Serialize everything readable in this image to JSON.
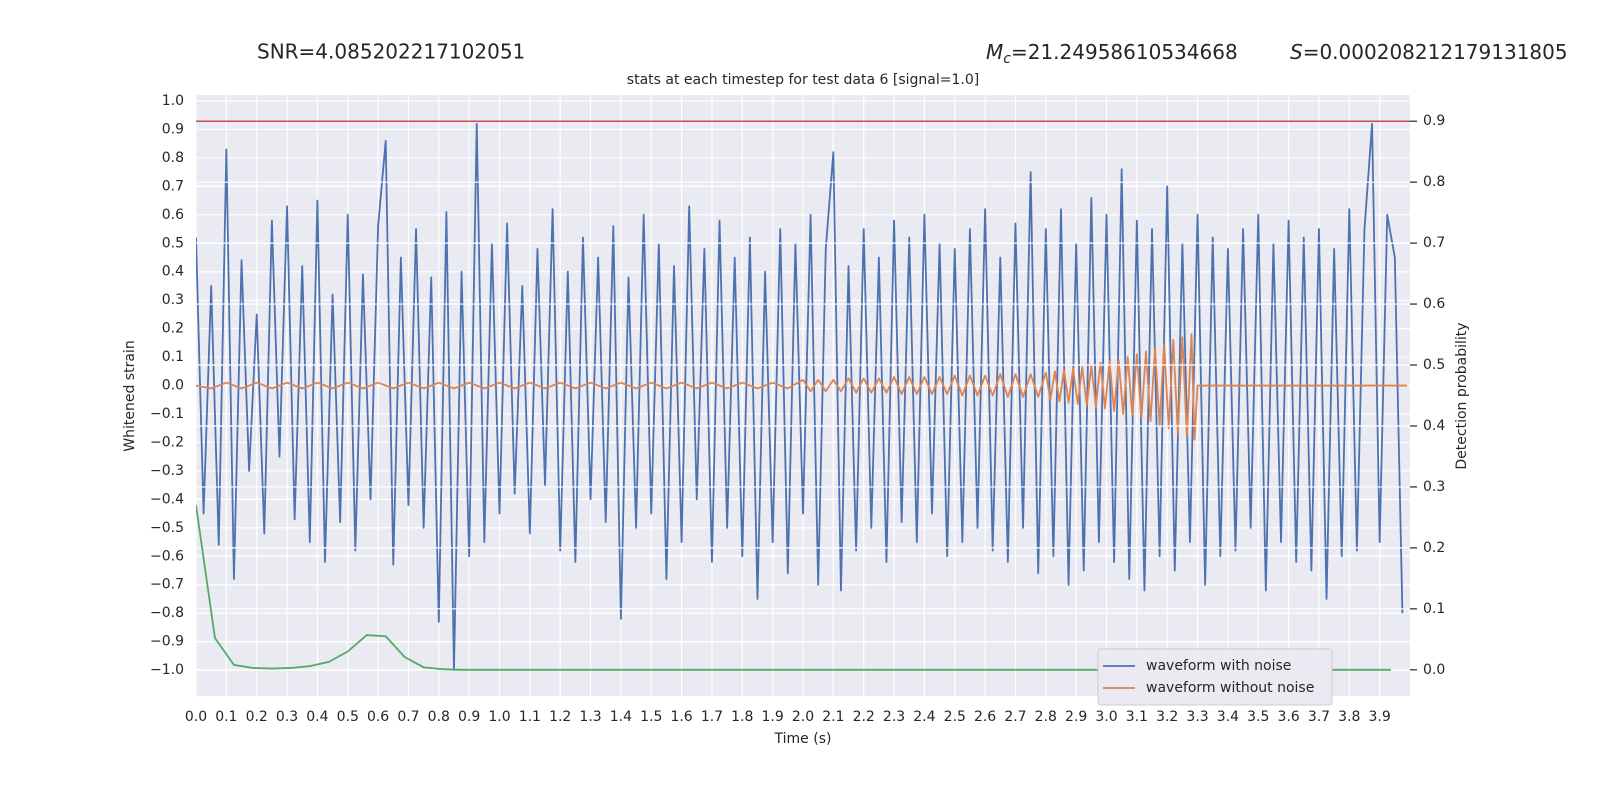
{
  "header": {
    "snr": "SNR=4.085202217102051",
    "mc": {
      "symbol": "M",
      "subscript": "c",
      "text": "=21.24958610534668"
    },
    "s": {
      "symbol": "S",
      "text": "=0.000208212179131805"
    }
  },
  "chart_data": {
    "type": "line",
    "title": "stats at each timestep for test data 6 [signal=1.0]",
    "x_label": "Time (s)",
    "y_label": "Whitened strain",
    "y2_label": "Detection probability",
    "xlim": [
      0,
      4.0
    ],
    "ylim": [
      -1.091,
      1.021
    ],
    "y2lim": [
      -0.043,
      0.943
    ],
    "grid": true,
    "legend": "lower right",
    "xticks": [
      {
        "value": 0,
        "label": "0.0"
      },
      0.1,
      0.2,
      0.3,
      0.4,
      0.5,
      0.6,
      0.7,
      0.8,
      0.9,
      {
        "value": 1,
        "label": "1.0"
      },
      1.1,
      1.2,
      1.3,
      1.4,
      1.5,
      1.6,
      1.7,
      1.8,
      1.9,
      {
        "value": 2,
        "label": "2.0"
      },
      2.1,
      2.2,
      2.3,
      2.4,
      2.5,
      2.6,
      2.7,
      2.8,
      2.9,
      {
        "value": 3,
        "label": "3.0"
      },
      3.1,
      3.2,
      3.3,
      3.4,
      3.5,
      3.6,
      3.7,
      3.8,
      3.9
    ],
    "yticks": [
      {
        "value": -1,
        "label": "−1.0"
      },
      {
        "value": -0.9,
        "label": "−0.9"
      },
      {
        "value": -0.8,
        "label": "−0.8"
      },
      {
        "value": -0.7,
        "label": "−0.7"
      },
      {
        "value": -0.6,
        "label": "−0.6"
      },
      {
        "value": -0.5,
        "label": "−0.5"
      },
      {
        "value": -0.4,
        "label": "−0.4"
      },
      {
        "value": -0.3,
        "label": "−0.3"
      },
      {
        "value": -0.2,
        "label": "−0.2"
      },
      {
        "value": -0.1,
        "label": "−0.1"
      },
      {
        "value": 0,
        "label": "0.0"
      },
      0.1,
      0.2,
      0.3,
      0.4,
      0.5,
      0.6,
      0.7,
      0.8,
      0.9,
      {
        "value": 1,
        "label": "1.0"
      }
    ],
    "y2ticks": [
      {
        "value": 0,
        "label": "0.0"
      },
      0.1,
      0.2,
      0.3,
      0.4,
      0.5,
      0.6,
      0.7,
      0.8,
      0.9
    ],
    "hline": {
      "axis": "y2",
      "value": 0.9,
      "color": "#c44e52"
    },
    "series": [
      {
        "name": "waveform with noise",
        "color": "#4c72b0",
        "x": [
          0,
          0.025,
          0.05,
          0.075,
          0.1,
          0.125,
          0.15,
          0.175,
          0.2,
          0.225,
          0.25,
          0.275,
          0.3,
          0.325,
          0.35,
          0.375,
          0.4,
          0.425,
          0.45,
          0.475,
          0.5,
          0.525,
          0.55,
          0.575,
          0.6,
          0.625,
          0.65,
          0.675,
          0.7,
          0.725,
          0.75,
          0.775,
          0.8,
          0.825,
          0.85,
          0.875,
          0.9,
          0.925,
          0.95,
          0.975,
          1,
          1.025,
          1.05,
          1.075,
          1.1,
          1.125,
          1.15,
          1.175,
          1.2,
          1.225,
          1.25,
          1.275,
          1.3,
          1.325,
          1.35,
          1.375,
          1.4,
          1.425,
          1.45,
          1.475,
          1.5,
          1.525,
          1.55,
          1.575,
          1.6,
          1.625,
          1.65,
          1.675,
          1.7,
          1.725,
          1.75,
          1.775,
          1.8,
          1.825,
          1.85,
          1.875,
          1.9,
          1.925,
          1.95,
          1.975,
          2,
          2.025,
          2.05,
          2.075,
          2.1,
          2.125,
          2.15,
          2.175,
          2.2,
          2.225,
          2.25,
          2.275,
          2.3,
          2.325,
          2.35,
          2.375,
          2.4,
          2.425,
          2.45,
          2.475,
          2.5,
          2.525,
          2.55,
          2.575,
          2.6,
          2.625,
          2.65,
          2.675,
          2.7,
          2.725,
          2.75,
          2.775,
          2.8,
          2.825,
          2.85,
          2.875,
          2.9,
          2.925,
          2.95,
          2.975,
          3,
          3.025,
          3.05,
          3.075,
          3.1,
          3.125,
          3.15,
          3.175,
          3.2,
          3.225,
          3.25,
          3.275,
          3.3,
          3.325,
          3.35,
          3.375,
          3.4,
          3.425,
          3.45,
          3.475,
          3.5,
          3.525,
          3.55,
          3.575,
          3.6,
          3.625,
          3.65,
          3.675,
          3.7,
          3.725,
          3.75,
          3.775,
          3.8,
          3.825,
          3.85,
          3.875,
          3.9,
          3.925,
          3.95,
          3.975
        ],
        "values": [
          0.52,
          -0.45,
          0.35,
          -0.56,
          0.83,
          -0.68,
          0.44,
          -0.3,
          0.25,
          -0.52,
          0.58,
          -0.25,
          0.63,
          -0.47,
          0.42,
          -0.55,
          0.65,
          -0.62,
          0.32,
          -0.48,
          0.6,
          -0.58,
          0.39,
          -0.4,
          0.56,
          0.86,
          -0.63,
          0.45,
          -0.42,
          0.55,
          -0.5,
          0.38,
          -0.83,
          0.61,
          -1.0,
          0.4,
          -0.6,
          0.92,
          -0.55,
          0.5,
          -0.45,
          0.57,
          -0.38,
          0.35,
          -0.52,
          0.48,
          -0.35,
          0.62,
          -0.58,
          0.4,
          -0.62,
          0.52,
          -0.4,
          0.45,
          -0.48,
          0.56,
          -0.82,
          0.38,
          -0.5,
          0.6,
          -0.45,
          0.5,
          -0.68,
          0.42,
          -0.55,
          0.63,
          -0.4,
          0.48,
          -0.62,
          0.58,
          -0.5,
          0.45,
          -0.6,
          0.52,
          -0.75,
          0.4,
          -0.55,
          0.55,
          -0.66,
          0.5,
          -0.45,
          0.6,
          -0.7,
          0.48,
          0.82,
          -0.72,
          0.42,
          -0.58,
          0.55,
          -0.5,
          0.45,
          -0.62,
          0.58,
          -0.48,
          0.52,
          -0.55,
          0.6,
          -0.45,
          0.5,
          -0.6,
          0.48,
          -0.55,
          0.55,
          -0.5,
          0.62,
          -0.58,
          0.45,
          -0.62,
          0.57,
          -0.5,
          0.75,
          -0.66,
          0.55,
          -0.6,
          0.62,
          -0.7,
          0.5,
          -0.65,
          0.66,
          -0.55,
          0.6,
          -0.62,
          0.76,
          -0.68,
          0.58,
          -0.72,
          0.55,
          -0.6,
          0.7,
          -0.65,
          0.5,
          -0.55,
          0.6,
          -0.7,
          0.52,
          -0.6,
          0.48,
          -0.58,
          0.55,
          -0.5,
          0.6,
          -0.72,
          0.5,
          -0.55,
          0.58,
          -0.62,
          0.52,
          -0.65,
          0.55,
          -0.75,
          0.48,
          -0.6,
          0.62,
          -0.58,
          0.55,
          0.92,
          -0.55,
          0.6,
          0.45,
          -0.8
        ]
      },
      {
        "name": "waveform without noise",
        "color": "#dd8452",
        "x": [
          0,
          0.05,
          0.1,
          0.15,
          0.2,
          0.25,
          0.3,
          0.35,
          0.4,
          0.45,
          0.5,
          0.55,
          0.6,
          0.65,
          0.7,
          0.75,
          0.8,
          0.85,
          0.9,
          0.95,
          1,
          1.05,
          1.1,
          1.15,
          1.2,
          1.25,
          1.3,
          1.35,
          1.4,
          1.45,
          1.5,
          1.55,
          1.6,
          1.65,
          1.7,
          1.75,
          1.8,
          1.85,
          1.9,
          1.95,
          2,
          2.025,
          2.05,
          2.075,
          2.1,
          2.125,
          2.15,
          2.175,
          2.2,
          2.225,
          2.25,
          2.275,
          2.3,
          2.325,
          2.35,
          2.375,
          2.4,
          2.425,
          2.45,
          2.475,
          2.5,
          2.525,
          2.55,
          2.575,
          2.6,
          2.625,
          2.65,
          2.675,
          2.7,
          2.725,
          2.75,
          2.775,
          2.8,
          2.815,
          2.83,
          2.845,
          2.86,
          2.875,
          2.89,
          2.905,
          2.92,
          2.935,
          2.95,
          2.965,
          2.98,
          2.995,
          3.01,
          3.025,
          3.04,
          3.055,
          3.07,
          3.085,
          3.1,
          3.115,
          3.13,
          3.145,
          3.16,
          3.175,
          3.19,
          3.205,
          3.22,
          3.235,
          3.25,
          3.265,
          3.28,
          3.29,
          3.3,
          3.99
        ],
        "values": [
          0,
          -0.01,
          0.01,
          -0.01,
          0.01,
          -0.01,
          0.01,
          -0.01,
          0.01,
          -0.01,
          0.01,
          -0.01,
          0.01,
          -0.01,
          0.01,
          -0.01,
          0.01,
          -0.01,
          0.01,
          -0.01,
          0.01,
          -0.01,
          0.01,
          -0.01,
          0.01,
          -0.01,
          0.01,
          -0.01,
          0.01,
          -0.01,
          0.01,
          -0.01,
          0.01,
          -0.01,
          0.01,
          -0.01,
          0.01,
          -0.01,
          0.01,
          -0.01,
          0.02,
          -0.02,
          0.02,
          -0.02,
          0.02,
          -0.02,
          0.025,
          -0.025,
          0.025,
          -0.025,
          0.025,
          -0.025,
          0.03,
          -0.03,
          0.03,
          -0.03,
          0.03,
          -0.03,
          0.03,
          -0.03,
          0.035,
          -0.035,
          0.035,
          -0.035,
          0.035,
          -0.035,
          0.04,
          -0.04,
          0.04,
          -0.04,
          0.04,
          -0.04,
          0.045,
          -0.05,
          0.05,
          -0.055,
          0.055,
          -0.06,
          0.06,
          -0.065,
          0.065,
          -0.07,
          0.07,
          -0.075,
          0.08,
          -0.08,
          0.085,
          -0.09,
          0.09,
          -0.1,
          0.1,
          -0.105,
          0.11,
          -0.115,
          0.12,
          -0.125,
          0.13,
          -0.14,
          0.145,
          -0.15,
          0.16,
          -0.17,
          0.17,
          -0.18,
          0.18,
          -0.19,
          0,
          0
        ]
      },
      {
        "color": "#55a868",
        "axis": "y2",
        "x": [
          0,
          0.0625,
          0.125,
          0.1875,
          0.25,
          0.3125,
          0.375,
          0.4375,
          0.5,
          0.5625,
          0.625,
          0.6875,
          0.75,
          0.8125,
          0.875,
          0.9375,
          1,
          1.0625,
          1.125,
          1.1875,
          1.25,
          1.3125,
          1.375,
          1.4375,
          1.5,
          1.5625,
          1.625,
          1.6875,
          1.75,
          1.8125,
          1.875,
          1.9375,
          2,
          2.0625,
          2.125,
          2.1875,
          2.25,
          2.3125,
          2.375,
          2.4375,
          2.5,
          2.5625,
          2.625,
          2.6875,
          2.75,
          2.8125,
          2.875,
          2.9375,
          3,
          3.0625,
          3.125,
          3.1875,
          3.25,
          3.3125,
          3.375,
          3.4375,
          3.5,
          3.5625,
          3.625,
          3.6875,
          3.75,
          3.8125,
          3.875,
          3.9375
        ],
        "values": [
          0.27,
          0.052,
          0.008,
          0.003,
          0.002,
          0.003,
          0.006,
          0.013,
          0.03,
          0.057,
          0.055,
          0.021,
          0.004,
          0.001,
          0,
          0,
          0,
          0,
          0,
          0,
          0,
          0,
          0,
          0,
          0,
          0,
          0,
          0,
          0,
          0,
          0,
          0,
          0,
          0,
          0,
          0,
          0,
          0,
          0,
          0,
          0,
          0,
          0,
          0,
          0,
          0,
          0,
          0,
          0,
          0,
          0,
          0,
          0,
          0,
          0,
          0,
          0,
          0,
          0,
          0,
          0,
          0,
          0,
          0
        ]
      }
    ]
  }
}
